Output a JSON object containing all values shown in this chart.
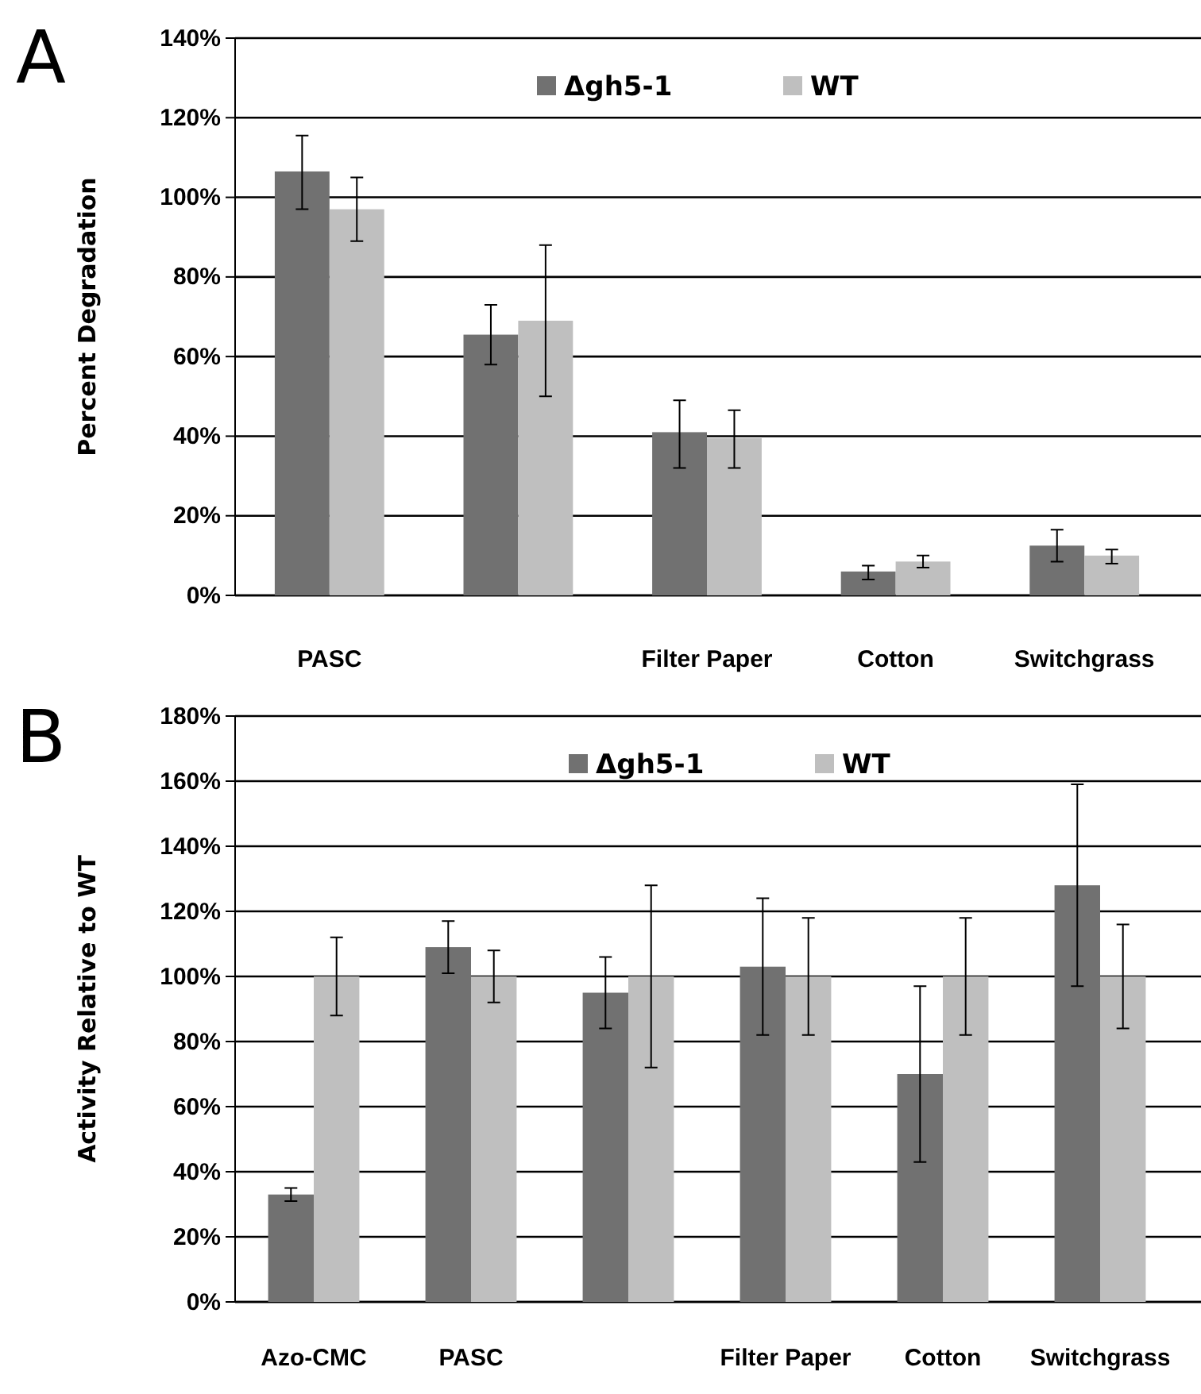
{
  "chart_data": [
    {
      "type": "bar",
      "annotations": [
        "A"
      ],
      "ylabel": "Percent  Degradation",
      "categories": [
        "PASC",
        null,
        "Filter Paper",
        "Cotton",
        "Switchgrass"
      ],
      "series": [
        {
          "name": "Δgh5-1",
          "color": "#717171",
          "values": [
            106.5,
            65.5,
            41,
            6,
            12.5
          ],
          "errors": [
            [
              97,
              115.5
            ],
            [
              58,
              73
            ],
            [
              32,
              49
            ],
            [
              4,
              7.5
            ],
            [
              8.5,
              16.5
            ]
          ]
        },
        {
          "name": "WT",
          "color": "#bfbfbf",
          "values": [
            97,
            69,
            39.5,
            8.5,
            10
          ],
          "errors": [
            [
              89,
              105
            ],
            [
              50,
              88
            ],
            [
              32,
              46.5
            ],
            [
              7,
              10
            ],
            [
              8,
              11.5
            ]
          ]
        }
      ],
      "ylim": [
        0,
        140
      ],
      "yticks": [
        {
          "value": 0,
          "label": "0%"
        },
        {
          "value": 20,
          "label": "20%"
        },
        {
          "value": 40,
          "label": "40%"
        },
        {
          "value": 60,
          "label": "60%"
        },
        {
          "value": 80,
          "label": "80%"
        },
        {
          "value": 100,
          "label": "100%"
        },
        {
          "value": 120,
          "label": "120%"
        },
        {
          "value": 140,
          "label": "140%"
        }
      ],
      "grid": "y",
      "legend": "top"
    },
    {
      "type": "bar",
      "annotations": [
        "B"
      ],
      "ylabel": "Activity Relative to WT",
      "categories": [
        "Azo-CMC",
        "PASC",
        null,
        "Filter Paper",
        "Cotton",
        "Switchgrass"
      ],
      "series": [
        {
          "name": "Δgh5-1",
          "color": "#717171",
          "values": [
            33,
            109,
            95,
            103,
            70,
            128
          ],
          "errors": [
            [
              31,
              35
            ],
            [
              101,
              117
            ],
            [
              84,
              106
            ],
            [
              82,
              124
            ],
            [
              43,
              97
            ],
            [
              97,
              159
            ]
          ]
        },
        {
          "name": "WT",
          "color": "#bfbfbf",
          "values": [
            100,
            100,
            100,
            100,
            100,
            100
          ],
          "errors": [
            [
              88,
              112
            ],
            [
              92,
              108
            ],
            [
              72,
              128
            ],
            [
              82,
              118
            ],
            [
              82,
              118
            ],
            [
              84,
              116
            ]
          ]
        }
      ],
      "ylim": [
        0,
        180
      ],
      "yticks": [
        {
          "value": 0,
          "label": "0%"
        },
        {
          "value": 20,
          "label": "20%"
        },
        {
          "value": 40,
          "label": "40%"
        },
        {
          "value": 60,
          "label": "60%"
        },
        {
          "value": 80,
          "label": "80%"
        },
        {
          "value": 100,
          "label": "100%"
        },
        {
          "value": 120,
          "label": "120%"
        },
        {
          "value": 140,
          "label": "140%"
        },
        {
          "value": 160,
          "label": "160%"
        },
        {
          "value": 180,
          "label": "180%"
        }
      ],
      "grid": "y",
      "legend": "top"
    }
  ]
}
